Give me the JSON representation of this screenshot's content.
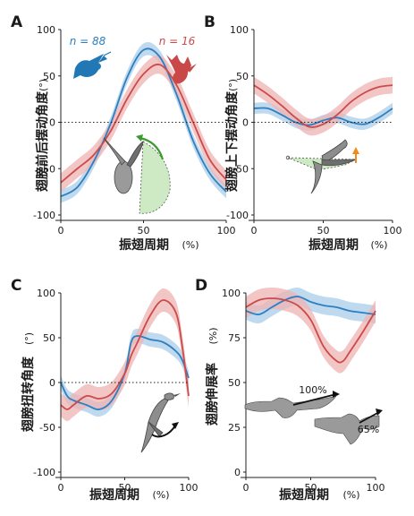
{
  "colors": {
    "blue": "#2e7fbf",
    "blue_band": "#a9cdea",
    "red": "#cc4a4a",
    "red_band": "#efb3b3",
    "green": "#3a9a2e",
    "green_fill": "#cdeac4",
    "orange": "#f08a1c",
    "bird_blue": "#2278b4",
    "bird_red": "#c94949",
    "gray": "#8d8d8d"
  },
  "icons": {
    "hummingbird_blue": "hummingbird-icon",
    "hummingbird_red": "hummingbird-icon",
    "wing_sweep": "wing-sweep-diagram-icon",
    "wing_elevation": "wing-elevation-diagram-icon",
    "wing_twist": "wing-twist-diagram-icon",
    "wing_extension": "wing-extension-diagram-icon"
  },
  "chart_data": [
    {
      "panel": "A",
      "type": "line",
      "ylabel": "翅膀前后摆动角度",
      "yunit": "(°)",
      "xlabel": "振翅周期",
      "xunit": "(%)",
      "xlim": [
        0,
        100
      ],
      "ylim": [
        -100,
        100
      ],
      "xticks": [
        "0",
        "50",
        "100"
      ],
      "yticks": [
        "-100",
        "-50",
        "0",
        "50",
        "100"
      ],
      "zero_line": true,
      "annotations": [
        "n = 88",
        "n = 16"
      ],
      "series": [
        {
          "color": "blue",
          "x": [
            0,
            10,
            20,
            30,
            40,
            50,
            60,
            70,
            80,
            90,
            100
          ],
          "values": [
            -80,
            -70,
            -42,
            -2,
            48,
            78,
            70,
            30,
            -20,
            -55,
            -75
          ],
          "band": 7
        },
        {
          "color": "red",
          "x": [
            0,
            10,
            20,
            30,
            40,
            50,
            60,
            70,
            80,
            90,
            100
          ],
          "values": [
            -65,
            -50,
            -35,
            -10,
            25,
            52,
            62,
            40,
            0,
            -40,
            -62
          ],
          "band": 10
        }
      ]
    },
    {
      "panel": "B",
      "type": "line",
      "ylabel": "翅膀上下摆动角度",
      "yunit": "(°)",
      "xlabel": "振翅周期",
      "xunit": "(%)",
      "xlim": [
        0,
        100
      ],
      "ylim": [
        -100,
        100
      ],
      "xticks": [
        "0",
        "50",
        "100"
      ],
      "yticks": [
        "-100",
        "-50",
        "0",
        "50",
        "100"
      ],
      "zero_line": true,
      "series": [
        {
          "color": "blue",
          "x": [
            0,
            10,
            20,
            30,
            40,
            50,
            60,
            70,
            80,
            90,
            100
          ],
          "values": [
            15,
            15,
            8,
            0,
            -3,
            2,
            5,
            0,
            -2,
            5,
            15
          ],
          "band": 6
        },
        {
          "color": "red",
          "x": [
            0,
            10,
            20,
            30,
            40,
            50,
            60,
            70,
            80,
            90,
            100
          ],
          "values": [
            40,
            30,
            18,
            5,
            -5,
            -2,
            8,
            22,
            32,
            38,
            40
          ],
          "band": 9
        }
      ]
    },
    {
      "panel": "C",
      "type": "line",
      "ylabel": "翅膀扭转角度",
      "yunit": "(°)",
      "xlabel": "振翅周期",
      "xunit": "(%)",
      "xlim": [
        0,
        100
      ],
      "ylim": [
        -100,
        100
      ],
      "xticks": [
        "0",
        "50",
        "100"
      ],
      "yticks": [
        "-100",
        "-50",
        "0",
        "50",
        "100"
      ],
      "zero_line": true,
      "series": [
        {
          "color": "blue",
          "x": [
            0,
            5,
            10,
            20,
            30,
            40,
            50,
            55,
            60,
            70,
            80,
            90,
            95,
            100
          ],
          "values": [
            0,
            -15,
            -20,
            -25,
            -30,
            -20,
            10,
            45,
            52,
            48,
            45,
            35,
            25,
            5
          ],
          "band": 8
        },
        {
          "color": "red",
          "x": [
            0,
            5,
            10,
            20,
            30,
            40,
            50,
            55,
            60,
            70,
            80,
            90,
            95,
            100
          ],
          "values": [
            -25,
            -30,
            -25,
            -15,
            -18,
            -12,
            10,
            30,
            45,
            75,
            92,
            78,
            40,
            -15
          ],
          "band": 13
        }
      ]
    },
    {
      "panel": "D",
      "type": "line",
      "ylabel": "翅膀伸展率",
      "yunit": "(%)",
      "xlabel": "振翅周期",
      "xunit": "(%)",
      "xlim": [
        0,
        100
      ],
      "ylim": [
        0,
        100
      ],
      "xticks": [
        "0",
        "50",
        "100"
      ],
      "yticks": [
        "0",
        "25",
        "50",
        "75",
        "100"
      ],
      "zero_line": false,
      "annotations": [
        "100%",
        "65%"
      ],
      "series": [
        {
          "color": "blue",
          "x": [
            0,
            10,
            20,
            30,
            40,
            50,
            60,
            70,
            80,
            90,
            100
          ],
          "values": [
            90,
            88,
            92,
            96,
            98,
            95,
            93,
            92,
            90,
            89,
            88
          ],
          "band": 5
        },
        {
          "color": "red",
          "x": [
            0,
            10,
            20,
            30,
            40,
            50,
            60,
            70,
            75,
            80,
            90,
            100
          ],
          "values": [
            92,
            96,
            97,
            96,
            93,
            85,
            70,
            62,
            62,
            67,
            78,
            90
          ],
          "band": 6
        }
      ]
    }
  ]
}
